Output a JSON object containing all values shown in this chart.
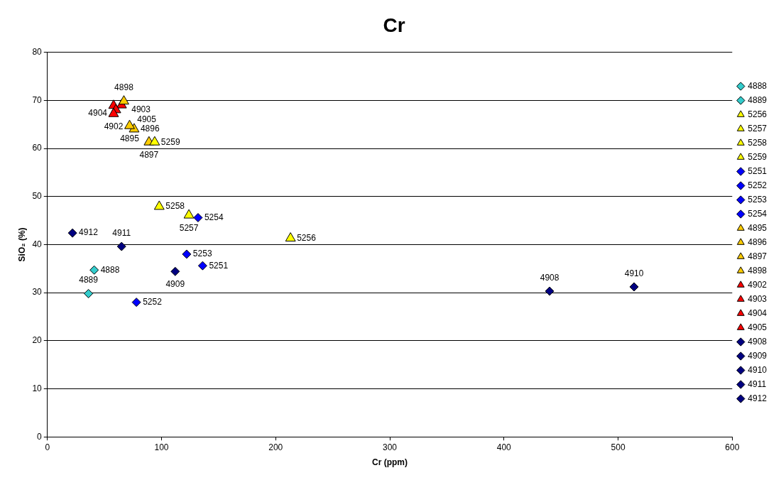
{
  "chart_data": {
    "type": "scatter",
    "title": "Cr",
    "xlabel": "Cr (ppm)",
    "ylabel": "SiO₂ (%)",
    "xlim": [
      0,
      600
    ],
    "xticks": [
      0,
      100,
      200,
      300,
      400,
      500,
      600
    ],
    "ylim": [
      0,
      80
    ],
    "yticks": [
      0,
      10,
      20,
      30,
      40,
      50,
      60,
      70,
      80
    ],
    "grid": "y",
    "legend": "right",
    "series": [
      {
        "name": "4888",
        "color": "#33cccc",
        "marker": "diamond",
        "x": [
          41
        ],
        "values": [
          34.7
        ]
      },
      {
        "name": "4889",
        "color": "#33cccc",
        "marker": "diamond",
        "x": [
          36
        ],
        "values": [
          29.8
        ]
      },
      {
        "name": "5256",
        "color": "#ffff00",
        "marker": "triangle",
        "x": [
          213
        ],
        "values": [
          41.3
        ]
      },
      {
        "name": "5257",
        "color": "#ffff00",
        "marker": "triangle",
        "x": [
          124
        ],
        "values": [
          46.1
        ]
      },
      {
        "name": "5258",
        "color": "#ffff00",
        "marker": "triangle",
        "x": [
          98
        ],
        "values": [
          47.9
        ]
      },
      {
        "name": "5259",
        "color": "#ffff00",
        "marker": "triangle",
        "x": [
          94
        ],
        "values": [
          61.3
        ]
      },
      {
        "name": "5251",
        "color": "#0000ff",
        "marker": "diamond",
        "x": [
          136
        ],
        "values": [
          35.6
        ]
      },
      {
        "name": "5252",
        "color": "#0000ff",
        "marker": "diamond",
        "x": [
          78
        ],
        "values": [
          28
        ]
      },
      {
        "name": "5253",
        "color": "#0000ff",
        "marker": "diamond",
        "x": [
          122
        ],
        "values": [
          38
        ]
      },
      {
        "name": "5254",
        "color": "#0000ff",
        "marker": "diamond",
        "x": [
          132
        ],
        "values": [
          45.6
        ]
      },
      {
        "name": "4895",
        "color": "#ffcc00",
        "marker": "triangle",
        "x": [
          72
        ],
        "values": [
          64.7
        ]
      },
      {
        "name": "4896",
        "color": "#ffcc00",
        "marker": "triangle",
        "x": [
          76
        ],
        "values": [
          64
        ]
      },
      {
        "name": "4897",
        "color": "#ffcc00",
        "marker": "triangle",
        "x": [
          89
        ],
        "values": [
          61.3
        ]
      },
      {
        "name": "4898",
        "color": "#ffcc00",
        "marker": "triangle",
        "x": [
          67
        ],
        "values": [
          69.8
        ]
      },
      {
        "name": "4902",
        "color": "#ff0000",
        "marker": "triangle",
        "x": [
          58
        ],
        "values": [
          67.2
        ]
      },
      {
        "name": "4903",
        "color": "#ff0000",
        "marker": "triangle",
        "x": [
          60
        ],
        "values": [
          68
        ]
      },
      {
        "name": "4904",
        "color": "#ff0000",
        "marker": "triangle",
        "x": [
          58
        ],
        "values": [
          68.9
        ]
      },
      {
        "name": "4905",
        "color": "#ff0000",
        "marker": "triangle",
        "x": [
          65
        ],
        "values": [
          69
        ]
      },
      {
        "name": "4908",
        "color": "#000080",
        "marker": "diamond",
        "x": [
          440
        ],
        "values": [
          30.3
        ]
      },
      {
        "name": "4909",
        "color": "#000080",
        "marker": "diamond",
        "x": [
          112
        ],
        "values": [
          34.4
        ]
      },
      {
        "name": "4910",
        "color": "#000080",
        "marker": "diamond",
        "x": [
          514
        ],
        "values": [
          31.2
        ]
      },
      {
        "name": "4911",
        "color": "#000080",
        "marker": "diamond",
        "x": [
          65
        ],
        "values": [
          39.6
        ]
      },
      {
        "name": "4912",
        "color": "#000080",
        "marker": "diamond",
        "x": [
          22
        ],
        "values": [
          42.4
        ]
      }
    ],
    "annotations": [
      {
        "text": "4888",
        "x": 41,
        "y": 34.7
      },
      {
        "text": "4889",
        "x": 36,
        "y": 29.8
      },
      {
        "text": "5256",
        "x": 213,
        "y": 41.3
      },
      {
        "text": "5257",
        "x": 124,
        "y": 46.1
      },
      {
        "text": "5258",
        "x": 98,
        "y": 47.9
      },
      {
        "text": "5259",
        "x": 94,
        "y": 61.3
      },
      {
        "text": "5251",
        "x": 136,
        "y": 35.6
      },
      {
        "text": "5252",
        "x": 78,
        "y": 28
      },
      {
        "text": "5253",
        "x": 122,
        "y": 38
      },
      {
        "text": "5254",
        "x": 132,
        "y": 45.6
      },
      {
        "text": "4895",
        "x": 72,
        "y": 64.7
      },
      {
        "text": "4896",
        "x": 76,
        "y": 64
      },
      {
        "text": "4897",
        "x": 89,
        "y": 61.3
      },
      {
        "text": "4898",
        "x": 67,
        "y": 69.8
      },
      {
        "text": "4902",
        "x": 58,
        "y": 67.2
      },
      {
        "text": "4903",
        "x": 60,
        "y": 68
      },
      {
        "text": "4904",
        "x": 58,
        "y": 68.9
      },
      {
        "text": "4905",
        "x": 65,
        "y": 69
      },
      {
        "text": "4908",
        "x": 440,
        "y": 30.3
      },
      {
        "text": "4909",
        "x": 112,
        "y": 34.4
      },
      {
        "text": "4910",
        "x": 514,
        "y": 31.2
      },
      {
        "text": "4911",
        "x": 65,
        "y": 39.6
      },
      {
        "text": "4912",
        "x": 22,
        "y": 42.4
      }
    ]
  }
}
